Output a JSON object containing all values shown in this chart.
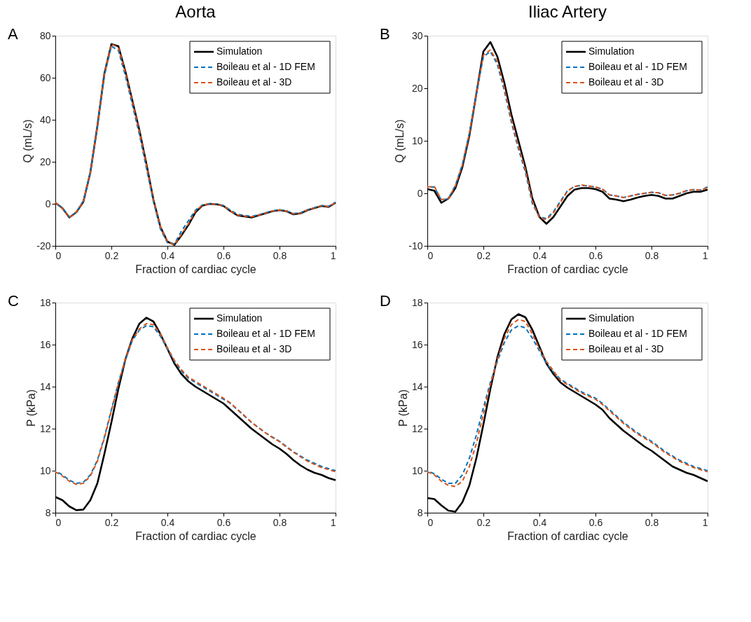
{
  "chart_data": [
    {
      "type": "line",
      "title": "Aorta",
      "annotations": [
        "A"
      ],
      "xlabel": "Fraction of cardiac cycle",
      "ylabel": "Q (mL/s)",
      "xlim": [
        0,
        1
      ],
      "ylim": [
        -20,
        80
      ],
      "xticks": [
        0,
        0.2,
        0.4,
        0.6,
        0.8,
        1
      ],
      "yticks": [
        -20,
        0,
        20,
        40,
        60,
        80
      ],
      "legend": "top right",
      "x": [
        0,
        0.025,
        0.05,
        0.075,
        0.1,
        0.125,
        0.15,
        0.175,
        0.2,
        0.225,
        0.25,
        0.275,
        0.3,
        0.325,
        0.35,
        0.375,
        0.4,
        0.425,
        0.45,
        0.475,
        0.5,
        0.525,
        0.55,
        0.575,
        0.6,
        0.625,
        0.65,
        0.675,
        0.7,
        0.725,
        0.75,
        0.775,
        0.8,
        0.825,
        0.85,
        0.875,
        0.9,
        0.925,
        0.95,
        0.975,
        1
      ],
      "series": [
        {
          "name": "Simulation",
          "color": "#000000",
          "line_style": "solid",
          "values": [
            0.5,
            -2,
            -6.5,
            -4,
            1,
            15,
            37,
            62,
            76,
            75,
            63,
            49,
            35,
            19,
            2,
            -11,
            -18,
            -19.5,
            -15,
            -10,
            -4,
            -0.8,
            0,
            -0.2,
            -1,
            -3.5,
            -5.5,
            -6,
            -6.5,
            -5.5,
            -4.5,
            -3.5,
            -3,
            -3.5,
            -5,
            -4.5,
            -3,
            -2,
            -1,
            -1.5,
            0.5
          ]
        },
        {
          "name": "Boileau et al - 1D FEM",
          "color": "#0072bd",
          "line_style": "dashed",
          "values": [
            0.5,
            -2,
            -6.3,
            -4,
            1.5,
            15,
            37,
            61,
            75,
            73,
            61,
            47,
            33,
            17,
            1,
            -12,
            -18.5,
            -19,
            -13,
            -8,
            -3,
            -0.5,
            0,
            0,
            -0.8,
            -3,
            -5,
            -5.5,
            -6,
            -5.2,
            -4.2,
            -3.3,
            -2.8,
            -3.3,
            -4.6,
            -4.2,
            -2.8,
            -1.8,
            -0.8,
            -1.2,
            0.8
          ]
        },
        {
          "name": "Boileau et al - 3D",
          "color": "#d95319",
          "line_style": "dashed",
          "values": [
            0.5,
            -2,
            -6.5,
            -4,
            1.2,
            15,
            37,
            62,
            76,
            74.5,
            62.5,
            48.5,
            34.5,
            18.5,
            2,
            -11,
            -18,
            -19.5,
            -14.5,
            -9.5,
            -3.5,
            -0.6,
            0,
            -0.2,
            -1,
            -3.5,
            -5.3,
            -5.8,
            -6.2,
            -5.4,
            -4.4,
            -3.4,
            -2.9,
            -3.4,
            -4.8,
            -4.4,
            -2.9,
            -1.9,
            -0.9,
            -1.3,
            0.6
          ]
        }
      ]
    },
    {
      "type": "line",
      "title": "Iliac Artery",
      "annotations": [
        "B"
      ],
      "xlabel": "Fraction of cardiac cycle",
      "ylabel": "Q (mL/s)",
      "xlim": [
        0,
        1
      ],
      "ylim": [
        -10,
        30
      ],
      "xticks": [
        0,
        0.2,
        0.4,
        0.6,
        0.8,
        1
      ],
      "yticks": [
        -10,
        0,
        10,
        20,
        30
      ],
      "legend": "top right",
      "x": [
        0,
        0.025,
        0.05,
        0.075,
        0.1,
        0.125,
        0.15,
        0.175,
        0.2,
        0.225,
        0.25,
        0.275,
        0.3,
        0.325,
        0.35,
        0.375,
        0.4,
        0.425,
        0.45,
        0.475,
        0.5,
        0.525,
        0.55,
        0.575,
        0.6,
        0.625,
        0.65,
        0.675,
        0.7,
        0.725,
        0.75,
        0.775,
        0.8,
        0.825,
        0.85,
        0.875,
        0.9,
        0.925,
        0.95,
        0.975,
        1
      ],
      "series": [
        {
          "name": "Simulation",
          "color": "#000000",
          "line_style": "solid",
          "values": [
            0.8,
            0.5,
            -1.8,
            -1,
            1,
            5,
            11,
            19,
            27,
            28.8,
            26,
            21,
            15,
            10,
            5,
            -1,
            -4.5,
            -5.8,
            -4.5,
            -2.5,
            -0.5,
            0.7,
            1,
            1,
            0.8,
            0.3,
            -1,
            -1.2,
            -1.5,
            -1.2,
            -0.8,
            -0.5,
            -0.3,
            -0.5,
            -1,
            -1,
            -0.5,
            0,
            0.3,
            0.3,
            0.7
          ]
        },
        {
          "name": "Boileau et al - 1D FEM",
          "color": "#0072bd",
          "line_style": "dashed",
          "values": [
            1.2,
            1.2,
            -1.3,
            -1,
            1.5,
            5.5,
            11.5,
            19,
            26,
            27,
            24.5,
            19.5,
            13.5,
            8.5,
            4,
            -2,
            -4.5,
            -4.8,
            -3.5,
            -1.5,
            0.5,
            1.3,
            1.5,
            1.4,
            1.2,
            0.8,
            -0.3,
            -0.5,
            -0.8,
            -0.5,
            -0.2,
            0,
            0.2,
            0.1,
            -0.4,
            -0.3,
            0,
            0.5,
            0.7,
            0.6,
            1.2
          ]
        },
        {
          "name": "Boileau et al - 3D",
          "color": "#d95319",
          "line_style": "dashed",
          "values": [
            1.2,
            1.3,
            -1.2,
            -1,
            1.4,
            5.4,
            11.4,
            19,
            26.3,
            27.3,
            25,
            20,
            14,
            9,
            4.5,
            -1.5,
            -4.7,
            -5,
            -3.7,
            -1.7,
            0.4,
            1.3,
            1.6,
            1.4,
            1.2,
            0.8,
            -0.3,
            -0.5,
            -0.8,
            -0.5,
            -0.2,
            0,
            0.2,
            0.1,
            -0.4,
            -0.3,
            0,
            0.5,
            0.7,
            0.6,
            1.1
          ]
        }
      ]
    },
    {
      "type": "line",
      "annotations": [
        "C"
      ],
      "xlabel": "Fraction of cardiac cycle",
      "ylabel": "P (kPa)",
      "xlim": [
        0,
        1
      ],
      "ylim": [
        8,
        18
      ],
      "xticks": [
        0,
        0.2,
        0.4,
        0.6,
        0.8,
        1
      ],
      "yticks": [
        8,
        10,
        12,
        14,
        16,
        18
      ],
      "legend": "top right",
      "x": [
        0,
        0.025,
        0.05,
        0.075,
        0.1,
        0.125,
        0.15,
        0.175,
        0.2,
        0.225,
        0.25,
        0.275,
        0.3,
        0.325,
        0.35,
        0.375,
        0.4,
        0.425,
        0.45,
        0.475,
        0.5,
        0.525,
        0.55,
        0.575,
        0.6,
        0.625,
        0.65,
        0.675,
        0.7,
        0.725,
        0.75,
        0.775,
        0.8,
        0.825,
        0.85,
        0.875,
        0.9,
        0.925,
        0.95,
        0.975,
        1
      ],
      "series": [
        {
          "name": "Simulation",
          "color": "#000000",
          "line_style": "solid",
          "values": [
            8.75,
            8.6,
            8.3,
            8.12,
            8.15,
            8.6,
            9.4,
            10.8,
            12.3,
            13.9,
            15.3,
            16.3,
            17,
            17.28,
            17.1,
            16.5,
            15.8,
            15.1,
            14.6,
            14.25,
            14,
            13.8,
            13.6,
            13.4,
            13.2,
            12.9,
            12.6,
            12.3,
            12,
            11.75,
            11.5,
            11.25,
            11.05,
            10.8,
            10.5,
            10.25,
            10.05,
            9.9,
            9.8,
            9.65,
            9.55
          ]
        },
        {
          "name": "Boileau et al - 1D FEM",
          "color": "#0072bd",
          "line_style": "dashed",
          "values": [
            10,
            9.8,
            9.55,
            9.4,
            9.45,
            9.8,
            10.5,
            11.6,
            12.9,
            14.2,
            15.3,
            16.2,
            16.7,
            16.9,
            16.85,
            16.4,
            15.8,
            15.2,
            14.75,
            14.4,
            14.2,
            14,
            13.8,
            13.6,
            13.4,
            13.2,
            12.9,
            12.6,
            12.3,
            12.05,
            11.8,
            11.6,
            11.4,
            11.15,
            10.9,
            10.7,
            10.5,
            10.35,
            10.2,
            10.1,
            10
          ]
        },
        {
          "name": "Boileau et al - 3D",
          "color": "#d95319",
          "line_style": "dashed",
          "values": [
            9.95,
            9.75,
            9.5,
            9.35,
            9.4,
            9.75,
            10.45,
            11.55,
            12.85,
            14.15,
            15.3,
            16.25,
            16.75,
            17,
            16.95,
            16.5,
            15.85,
            15.25,
            14.8,
            14.45,
            14.25,
            14.05,
            13.85,
            13.65,
            13.45,
            13.22,
            12.92,
            12.62,
            12.3,
            12.05,
            11.8,
            11.58,
            11.38,
            11.12,
            10.88,
            10.66,
            10.45,
            10.3,
            10.15,
            10.05,
            9.95
          ]
        }
      ]
    },
    {
      "type": "line",
      "annotations": [
        "D"
      ],
      "xlabel": "Fraction of cardiac cycle",
      "ylabel": "P (kPa)",
      "xlim": [
        0,
        1
      ],
      "ylim": [
        8,
        18
      ],
      "xticks": [
        0,
        0.2,
        0.4,
        0.6,
        0.8,
        1
      ],
      "yticks": [
        8,
        10,
        12,
        14,
        16,
        18
      ],
      "legend": "top right",
      "x": [
        0,
        0.025,
        0.05,
        0.075,
        0.1,
        0.125,
        0.15,
        0.175,
        0.2,
        0.225,
        0.25,
        0.275,
        0.3,
        0.325,
        0.35,
        0.375,
        0.4,
        0.425,
        0.45,
        0.475,
        0.5,
        0.525,
        0.55,
        0.575,
        0.6,
        0.625,
        0.65,
        0.675,
        0.7,
        0.725,
        0.75,
        0.775,
        0.8,
        0.825,
        0.85,
        0.875,
        0.9,
        0.925,
        0.95,
        0.975,
        1
      ],
      "series": [
        {
          "name": "Simulation",
          "color": "#000000",
          "line_style": "solid",
          "values": [
            8.7,
            8.65,
            8.35,
            8.1,
            8.05,
            8.5,
            9.3,
            10.6,
            12.2,
            13.9,
            15.4,
            16.5,
            17.2,
            17.45,
            17.3,
            16.7,
            15.9,
            15.1,
            14.6,
            14.2,
            13.95,
            13.75,
            13.55,
            13.35,
            13.15,
            12.9,
            12.5,
            12.2,
            11.9,
            11.65,
            11.4,
            11.15,
            10.95,
            10.7,
            10.45,
            10.2,
            10.05,
            9.9,
            9.8,
            9.65,
            9.5
          ]
        },
        {
          "name": "Boileau et al - 1D FEM",
          "color": "#0072bd",
          "line_style": "dashed",
          "values": [
            10,
            9.85,
            9.6,
            9.4,
            9.4,
            9.8,
            10.6,
            11.7,
            13,
            14.2,
            15.2,
            16.1,
            16.7,
            16.9,
            16.8,
            16.3,
            15.7,
            15.1,
            14.7,
            14.35,
            14.15,
            13.95,
            13.75,
            13.6,
            13.45,
            13.2,
            12.9,
            12.6,
            12.3,
            12.05,
            11.8,
            11.6,
            11.4,
            11.15,
            10.9,
            10.7,
            10.5,
            10.35,
            10.2,
            10.1,
            10
          ]
        },
        {
          "name": "Boileau et al - 3D",
          "color": "#d95319",
          "line_style": "dashed",
          "values": [
            9.95,
            9.8,
            9.5,
            9.3,
            9.25,
            9.5,
            10.2,
            11.3,
            12.7,
            14.1,
            15.3,
            16.3,
            16.95,
            17.2,
            17.1,
            16.5,
            15.8,
            15.2,
            14.75,
            14.3,
            14.1,
            13.9,
            13.7,
            13.55,
            13.4,
            13.15,
            12.85,
            12.55,
            12.25,
            12,
            11.75,
            11.55,
            11.35,
            11.1,
            10.85,
            10.65,
            10.45,
            10.3,
            10.15,
            10.05,
            9.95
          ]
        }
      ]
    }
  ]
}
